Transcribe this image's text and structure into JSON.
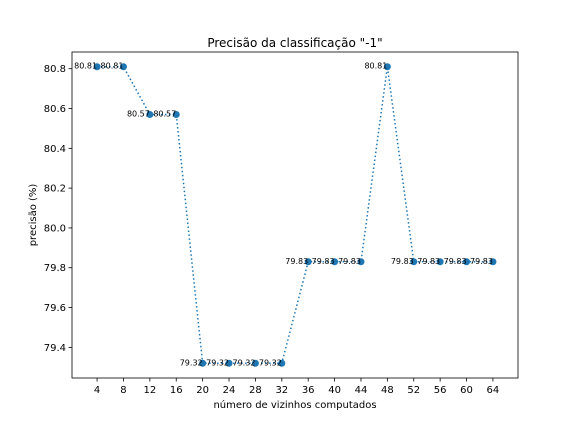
{
  "chart_data": {
    "type": "line",
    "title": "Precisão da classificação \"-1\"",
    "xlabel": "número de vizinhos computados",
    "ylabel": "precisão (%)",
    "x": [
      4,
      8,
      12,
      16,
      20,
      24,
      28,
      32,
      36,
      40,
      44,
      48,
      52,
      56,
      60,
      64
    ],
    "y": [
      80.81,
      80.81,
      80.57,
      80.57,
      79.32,
      79.32,
      79.32,
      79.32,
      79.83,
      79.83,
      79.83,
      80.81,
      79.83,
      79.83,
      79.83,
      79.83
    ],
    "labels": [
      "80.81",
      "80.81",
      "80.57",
      "80.57",
      "79.32",
      "79.32",
      "79.32",
      "79.32",
      "79.83",
      "79.83",
      "79.83",
      "80.81",
      "79.83",
      "79.83",
      "79.83",
      "79.83"
    ],
    "x_ticks": [
      4,
      8,
      12,
      16,
      20,
      24,
      28,
      32,
      36,
      40,
      44,
      48,
      52,
      56,
      60,
      64
    ],
    "y_ticks": [
      "79.4",
      "79.6",
      "79.8",
      "80.0",
      "80.2",
      "80.4",
      "80.6",
      "80.8"
    ],
    "xlim": [
      0.2,
      67.8
    ],
    "ylim": [
      79.246,
      80.884
    ],
    "line_style": "dotted",
    "marker": "circle",
    "grid": false,
    "colors": {
      "series": "#1f77b4"
    }
  }
}
